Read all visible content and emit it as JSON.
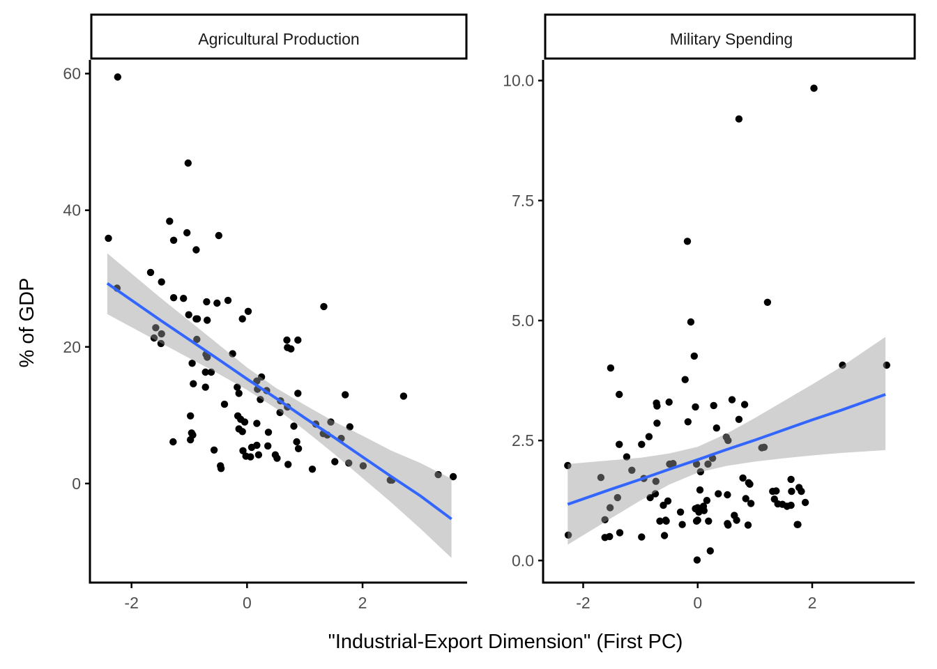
{
  "chart_data": {
    "type": "scatter",
    "xlabel": "\"Industrial-Export Dimension\" (First PC)",
    "ylabel": "% of GDP",
    "grid": false,
    "colors": {
      "point": "#000000",
      "fit_line": "#3366FF",
      "ribbon": "#999999",
      "axis": "#000000",
      "tick_text": "#4d4d4d"
    },
    "panels": [
      {
        "title": "Agricultural Production",
        "xlim": [
          -2.72,
          3.81
        ],
        "ylim": [
          -14.5,
          62.0
        ],
        "x_ticks": [
          -2,
          0,
          2
        ],
        "x_tick_labels": [
          "-2",
          "0",
          "2"
        ],
        "y_ticks": [
          0,
          20,
          40,
          60
        ],
        "y_tick_labels": [
          "0",
          "20",
          "40",
          "60"
        ],
        "fit": {
          "x": [
            -2.42,
            -1.5,
            -0.5,
            0.0,
            0.5,
            1.0,
            1.5,
            2.0,
            2.5,
            3.0,
            3.54
          ],
          "y": [
            29.3,
            23.9,
            18.2,
            15.3,
            12.5,
            9.6,
            6.8,
            3.9,
            1.0,
            -1.8,
            -5.2
          ],
          "lower": [
            24.8,
            20.6,
            16.1,
            13.7,
            11.0,
            7.8,
            4.4,
            0.8,
            -2.8,
            -6.6,
            -10.9
          ],
          "upper": [
            33.7,
            27.2,
            20.4,
            17.0,
            14.0,
            11.5,
            9.1,
            7.0,
            4.8,
            3.0,
            0.7
          ]
        },
        "points": [
          [
            -2.24,
            59.5
          ],
          [
            -1.02,
            46.9
          ],
          [
            -2.4,
            35.9
          ],
          [
            -1.34,
            38.4
          ],
          [
            -1.04,
            36.7
          ],
          [
            -1.27,
            35.6
          ],
          [
            -0.88,
            34.2
          ],
          [
            -0.49,
            36.3
          ],
          [
            -1.67,
            30.9
          ],
          [
            -2.25,
            28.6
          ],
          [
            -1.48,
            29.5
          ],
          [
            -1.1,
            27.1
          ],
          [
            -1.27,
            27.2
          ],
          [
            -1.01,
            24.7
          ],
          [
            -0.7,
            26.6
          ],
          [
            -0.88,
            24.1
          ],
          [
            -0.86,
            24.1
          ],
          [
            -0.69,
            23.9
          ],
          [
            -0.08,
            24.1
          ],
          [
            -0.33,
            26.8
          ],
          [
            -0.52,
            26.4
          ],
          [
            0.02,
            25.2
          ],
          [
            1.33,
            25.9
          ],
          [
            -1.58,
            22.8
          ],
          [
            -1.48,
            21.9
          ],
          [
            -1.61,
            21.3
          ],
          [
            -1.49,
            20.5
          ],
          [
            -0.87,
            21.1
          ],
          [
            -0.71,
            18.9
          ],
          [
            -0.69,
            18.5
          ],
          [
            -0.25,
            19.0
          ],
          [
            0.69,
            21.0
          ],
          [
            0.7,
            19.9
          ],
          [
            0.88,
            21.0
          ],
          [
            -0.95,
            17.6
          ],
          [
            -0.72,
            16.3
          ],
          [
            -0.93,
            14.6
          ],
          [
            -0.72,
            14.1
          ],
          [
            0.25,
            15.6
          ],
          [
            -0.14,
            13.2
          ],
          [
            0.34,
            13.6
          ],
          [
            0.17,
            15.0
          ],
          [
            -0.17,
            14.1
          ],
          [
            0.88,
            13.2
          ],
          [
            -0.98,
            9.9
          ],
          [
            -0.96,
            7.4
          ],
          [
            -0.94,
            7.1
          ],
          [
            -0.39,
            11.6
          ],
          [
            -0.98,
            6.4
          ],
          [
            -1.28,
            6.1
          ],
          [
            -0.57,
            4.9
          ],
          [
            -0.46,
            2.6
          ],
          [
            -0.45,
            2.2
          ],
          [
            -0.07,
            4.8
          ],
          [
            -0.02,
            4.0
          ],
          [
            0.06,
            3.9
          ],
          [
            0.08,
            5.3
          ],
          [
            -0.14,
            8.0
          ],
          [
            -0.08,
            7.6
          ],
          [
            -0.11,
            9.4
          ],
          [
            -0.16,
            9.9
          ],
          [
            -0.04,
            9.0
          ],
          [
            0.23,
            12.3
          ],
          [
            0.37,
            7.5
          ],
          [
            0.17,
            8.8
          ],
          [
            0.17,
            5.6
          ],
          [
            0.2,
            4.2
          ],
          [
            0.52,
            3.7
          ],
          [
            0.49,
            4.2
          ],
          [
            0.36,
            5.5
          ],
          [
            0.57,
            10.4
          ],
          [
            0.7,
            11.2
          ],
          [
            0.58,
            12.1
          ],
          [
            0.71,
            2.8
          ],
          [
            0.86,
            6.1
          ],
          [
            0.89,
            5.1
          ],
          [
            0.81,
            8.4
          ],
          [
            1.13,
            2.1
          ],
          [
            1.19,
            8.7
          ],
          [
            1.39,
            7.1
          ],
          [
            1.45,
            9.0
          ],
          [
            1.52,
            3.2
          ],
          [
            1.63,
            6.6
          ],
          [
            1.7,
            13.0
          ],
          [
            1.78,
            8.3
          ],
          [
            1.76,
            3.0
          ],
          [
            2.01,
            2.6
          ],
          [
            2.48,
            0.5
          ],
          [
            2.51,
            0.5
          ],
          [
            3.31,
            1.3
          ],
          [
            3.57,
            1.0
          ],
          [
            2.71,
            12.8
          ],
          [
            0.76,
            19.7
          ],
          [
            -0.62,
            16.3
          ],
          [
            0.18,
            13.8
          ],
          [
            1.32,
            7.3
          ]
        ]
      },
      {
        "title": "Military Spending",
        "xlim": [
          -2.7,
          3.79
        ],
        "ylim": [
          -0.46,
          10.43
        ],
        "x_ticks": [
          -2,
          0,
          2
        ],
        "x_tick_labels": [
          "-2",
          "0",
          "2"
        ],
        "y_ticks": [
          0.0,
          2.5,
          5.0,
          7.5,
          10.0
        ],
        "y_tick_labels": [
          "0.0",
          "2.5",
          "5.0",
          "7.5",
          "10.0"
        ],
        "fit": {
          "x": [
            -2.27,
            -1.5,
            -1.0,
            -0.5,
            0.0,
            0.5,
            1.0,
            1.5,
            2.0,
            2.5,
            3.28
          ],
          "y": [
            1.17,
            1.49,
            1.69,
            1.9,
            2.1,
            2.31,
            2.51,
            2.72,
            2.93,
            3.13,
            3.46
          ],
          "lower": [
            0.33,
            0.89,
            1.25,
            1.58,
            1.83,
            1.97,
            2.06,
            2.13,
            2.19,
            2.24,
            2.3
          ],
          "upper": [
            2.01,
            2.09,
            2.14,
            2.23,
            2.37,
            2.64,
            2.97,
            3.32,
            3.67,
            4.03,
            4.66
          ]
        },
        "points": [
          [
            2.03,
            9.84
          ],
          [
            0.72,
            9.2
          ],
          [
            -0.18,
            6.65
          ],
          [
            -0.12,
            4.97
          ],
          [
            1.22,
            5.38
          ],
          [
            -1.52,
            4.01
          ],
          [
            -0.06,
            4.26
          ],
          [
            -1.37,
            3.46
          ],
          [
            -0.22,
            3.77
          ],
          [
            0.6,
            3.35
          ],
          [
            0.82,
            3.25
          ],
          [
            2.53,
            4.07
          ],
          [
            3.3,
            4.07
          ],
          [
            -1.37,
            2.42
          ],
          [
            0.28,
            3.23
          ],
          [
            -0.72,
            3.28
          ],
          [
            -0.71,
            3.22
          ],
          [
            -0.04,
            3.2
          ],
          [
            -0.85,
            2.58
          ],
          [
            -0.5,
            3.3
          ],
          [
            -0.17,
            2.89
          ],
          [
            0.72,
            2.94
          ],
          [
            1.12,
            2.35
          ],
          [
            -0.71,
            2.86
          ],
          [
            0.05,
            1.85
          ],
          [
            -1.24,
            2.16
          ],
          [
            -1.69,
            1.73
          ],
          [
            -2.27,
            1.98
          ],
          [
            -2.26,
            0.53
          ],
          [
            -1.15,
            1.88
          ],
          [
            -0.98,
            2.42
          ],
          [
            -0.94,
            1.71
          ],
          [
            -0.74,
            1.39
          ],
          [
            -0.49,
            2.01
          ],
          [
            -0.43,
            2.02
          ],
          [
            -0.83,
            1.31
          ],
          [
            -0.56,
            0.84
          ],
          [
            -0.52,
            1.24
          ],
          [
            -0.02,
            2.01
          ],
          [
            0.26,
            2.13
          ],
          [
            0.18,
            2.01
          ],
          [
            0.33,
            2.76
          ],
          [
            0.5,
            2.57
          ],
          [
            0.53,
            2.5
          ],
          [
            0.79,
            1.72
          ],
          [
            0.89,
            1.62
          ],
          [
            1.16,
            2.36
          ],
          [
            0.84,
            1.29
          ],
          [
            1.31,
            1.44
          ],
          [
            1.37,
            1.45
          ],
          [
            1.64,
            1.44
          ],
          [
            1.48,
            1.17
          ],
          [
            1.63,
            1.15
          ],
          [
            1.81,
            1.44
          ],
          [
            1.88,
            1.21
          ],
          [
            1.63,
            1.69
          ],
          [
            1.77,
            1.52
          ],
          [
            1.75,
            0.75
          ],
          [
            0.88,
            0.74
          ],
          [
            1.34,
            1.28
          ],
          [
            -0.02,
            0.82
          ],
          [
            0.16,
            1.25
          ],
          [
            0.02,
            1.01
          ],
          [
            0.19,
            0.82
          ],
          [
            -1.54,
            0.5
          ],
          [
            -1.4,
            1.31
          ],
          [
            -0.66,
            0.82
          ],
          [
            -0.27,
            0.75
          ],
          [
            0.22,
            0.2
          ],
          [
            -0.01,
            0.01
          ],
          [
            0.36,
            1.39
          ],
          [
            -0.6,
            1.15
          ],
          [
            -0.73,
            1.65
          ],
          [
            0.52,
            1.37
          ],
          [
            0.52,
            0.77
          ],
          [
            0.64,
            0.94
          ],
          [
            0.1,
            1.13
          ],
          [
            0.11,
            1.04
          ],
          [
            -0.58,
            0.52
          ],
          [
            -0.98,
            0.49
          ],
          [
            -1.62,
            0.85
          ],
          [
            -1.53,
            1.1
          ],
          [
            -1.62,
            0.48
          ],
          [
            -1.36,
            0.58
          ],
          [
            0.04,
            1.47
          ],
          [
            -0.3,
            1.01
          ],
          [
            0.53,
            0.74
          ],
          [
            0.68,
            0.84
          ],
          [
            -0.04,
            1.08
          ],
          [
            0.93,
            1.19
          ],
          [
            1.4,
            1.18
          ],
          [
            1.56,
            1.13
          ],
          [
            0.91,
            1.59
          ],
          [
            1.74,
            0.75
          ],
          [
            0.0,
            1.1
          ],
          [
            0.0,
            0.84
          ],
          [
            -0.55,
            0.82
          ]
        ]
      }
    ]
  }
}
